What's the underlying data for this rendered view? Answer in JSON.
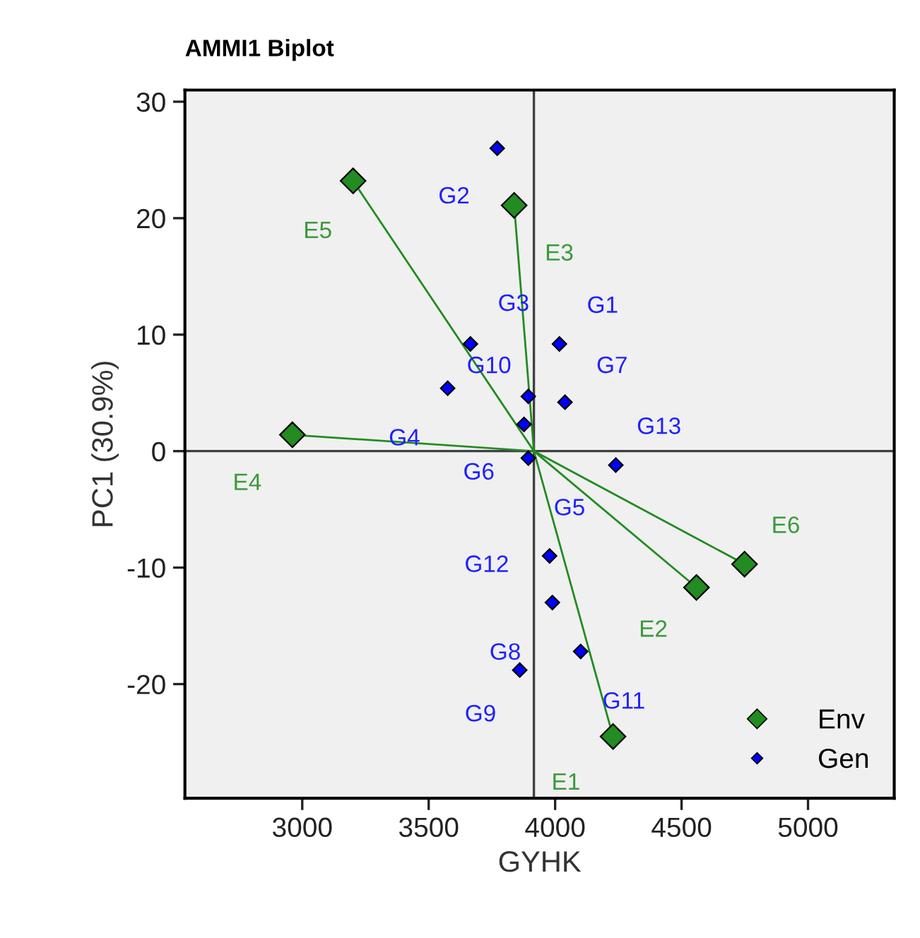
{
  "chart_data": {
    "type": "scatter",
    "title": "AMMI1 Biplot",
    "xlabel": "GYHK",
    "ylabel": "PC1 (30.9%)",
    "xlim": [
      2536,
      5341
    ],
    "ylim": [
      -29.8,
      31
    ],
    "xticks": [
      3000,
      3500,
      4000,
      4500,
      5000
    ],
    "yticks": [
      -20,
      -10,
      0,
      10,
      20,
      30
    ],
    "grid": false,
    "legend": "bottom right",
    "marker": "diamond",
    "ref_lines": [
      {
        "axis": "x",
        "value": 3916,
        "color": "#404040"
      },
      {
        "axis": "y",
        "value": 0,
        "color": "#404040"
      }
    ],
    "series": [
      {
        "name": "Env",
        "color": "#228b22",
        "x": [
          4229,
          4559,
          3838,
          2961,
          3201,
          4749
        ],
        "values": [
          -24.5,
          -11.7,
          21.1,
          1.4,
          23.2,
          -9.7
        ]
      },
      {
        "name": "Gen",
        "color": "#0000ff",
        "x": [
          4017,
          3771,
          3665,
          3575,
          3894,
          3877,
          4039,
          3989,
          3860,
          3894,
          4101,
          3978,
          4240
        ],
        "values": [
          9.2,
          26.0,
          9.2,
          5.4,
          -0.6,
          2.3,
          4.2,
          -13.0,
          -18.8,
          4.7,
          -17.2,
          -9.0,
          -1.2
        ]
      }
    ],
    "annotations": [
      {
        "text": "E1",
        "x": 4229,
        "y": -24.5
      },
      {
        "text": "E2",
        "x": 4559,
        "y": -11.7
      },
      {
        "text": "E3",
        "x": 3838,
        "y": 21.1
      },
      {
        "text": "E4",
        "x": 2961,
        "y": 1.4
      },
      {
        "text": "E5",
        "x": 3201,
        "y": 23.2
      },
      {
        "text": "E6",
        "x": 4749,
        "y": -9.7
      },
      {
        "text": "G1",
        "x": 4017,
        "y": 9.2
      },
      {
        "text": "G2",
        "x": 3771,
        "y": 26.0
      },
      {
        "text": "G3",
        "x": 3665,
        "y": 9.2
      },
      {
        "text": "G4",
        "x": 3575,
        "y": 5.4
      },
      {
        "text": "G5",
        "x": 3894,
        "y": -0.6
      },
      {
        "text": "G6",
        "x": 3877,
        "y": 2.3
      },
      {
        "text": "G7",
        "x": 4039,
        "y": 4.2
      },
      {
        "text": "G8",
        "x": 3989,
        "y": -13.0
      },
      {
        "text": "G9",
        "x": 3860,
        "y": -18.8
      },
      {
        "text": "G10",
        "x": 3894,
        "y": 4.7
      },
      {
        "text": "G11",
        "x": 4101,
        "y": -17.2
      },
      {
        "text": "G12",
        "x": 3978,
        "y": -9.0
      },
      {
        "text": "G13",
        "x": 4240,
        "y": -1.2
      }
    ]
  }
}
